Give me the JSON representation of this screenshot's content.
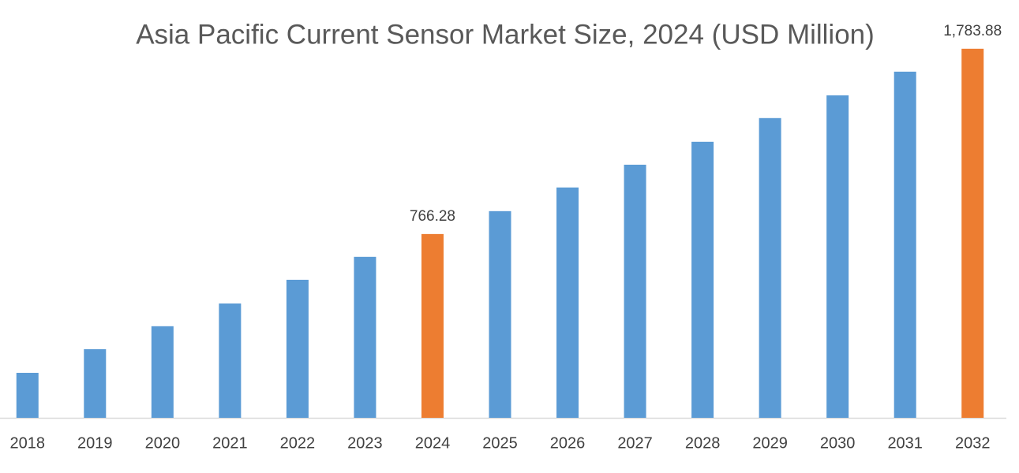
{
  "chart_data": {
    "type": "bar",
    "title": "Asia Pacific Current Sensor Market Size, 2024 (USD Million)",
    "categories": [
      "2018",
      "2019",
      "2020",
      "2021",
      "2022",
      "2023",
      "2024",
      "2025",
      "2026",
      "2027",
      "2028",
      "2029",
      "2030",
      "2031",
      "2032"
    ],
    "values": [
      4,
      134,
      260,
      385,
      515,
      641,
      766.28,
      892,
      1022,
      1147,
      1273,
      1403,
      1528,
      1658,
      1783.88
    ],
    "value_labels": [
      null,
      null,
      null,
      null,
      null,
      null,
      "766.28",
      null,
      null,
      null,
      null,
      null,
      null,
      null,
      "1,783.88"
    ],
    "colors": [
      "#5b9bd5",
      "#5b9bd5",
      "#5b9bd5",
      "#5b9bd5",
      "#5b9bd5",
      "#5b9bd5",
      "#ed7d31",
      "#5b9bd5",
      "#5b9bd5",
      "#5b9bd5",
      "#5b9bd5",
      "#5b9bd5",
      "#5b9bd5",
      "#5b9bd5",
      "#ed7d31"
    ],
    "ylim": [
      -243,
      1900
    ],
    "grid": false
  }
}
